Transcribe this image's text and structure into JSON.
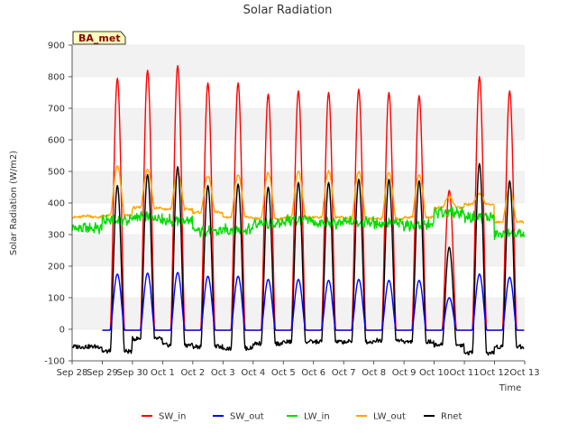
{
  "chart_data": {
    "type": "line",
    "title": "Solar Radiation",
    "xlabel": "Time",
    "ylabel": "Solar Radiation (W/m2)",
    "ylim": [
      -100,
      900
    ],
    "yticks": [
      -100,
      0,
      100,
      200,
      300,
      400,
      500,
      600,
      700,
      800,
      900
    ],
    "xlim": [
      "2023-09-28",
      "2023-10-13"
    ],
    "xtick_labels": [
      "Sep 28",
      "Sep 29",
      "Sep 30",
      "Oct 1",
      "Oct 2",
      "Oct 3",
      "Oct 4",
      "Oct 5",
      "Oct 6",
      "Oct 7",
      "Oct 8",
      "Oct 9",
      "Oct 10",
      "Oct 11",
      "Oct 12",
      "Oct 13"
    ],
    "site_label": "BA_met",
    "grid": "horizontal bands",
    "legend_position": "bottom",
    "days": [
      "Sep 28",
      "Sep 29",
      "Sep 30",
      "Oct 1",
      "Oct 2",
      "Oct 3",
      "Oct 4",
      "Oct 5",
      "Oct 6",
      "Oct 7",
      "Oct 8",
      "Oct 9",
      "Oct 10",
      "Oct 11",
      "Oct 12"
    ],
    "series": [
      {
        "name": "SW_in",
        "color": "#ff0000",
        "daily_peak": [
          null,
          795,
          820,
          835,
          780,
          780,
          745,
          755,
          750,
          760,
          750,
          740,
          440,
          800,
          755
        ]
      },
      {
        "name": "SW_out",
        "color": "#0000ff",
        "daily_peak": [
          null,
          175,
          178,
          180,
          168,
          168,
          158,
          158,
          155,
          158,
          155,
          155,
          100,
          175,
          165
        ]
      },
      {
        "name": "LW_in",
        "color": "#00dd00",
        "daily_mean": [
          320,
          345,
          355,
          345,
          310,
          315,
          335,
          345,
          335,
          340,
          335,
          330,
          370,
          355,
          300
        ]
      },
      {
        "name": "LW_out",
        "color": "#ffa500",
        "daily_peak": [
          360,
          515,
          505,
          495,
          485,
          490,
          495,
          500,
          500,
          500,
          495,
          490,
          420,
          430,
          450
        ],
        "daily_min": [
          355,
          360,
          385,
          380,
          370,
          355,
          350,
          355,
          355,
          350,
          350,
          355,
          385,
          395,
          340
        ]
      },
      {
        "name": "Rnet",
        "color": "#000000",
        "daily_peak": [
          null,
          455,
          490,
          515,
          455,
          460,
          450,
          465,
          465,
          475,
          475,
          470,
          260,
          525,
          470
        ],
        "daily_min": [
          -55,
          -70,
          -30,
          -50,
          -55,
          -60,
          -45,
          -40,
          -40,
          -40,
          -35,
          -40,
          -50,
          -75,
          -55
        ]
      }
    ]
  }
}
